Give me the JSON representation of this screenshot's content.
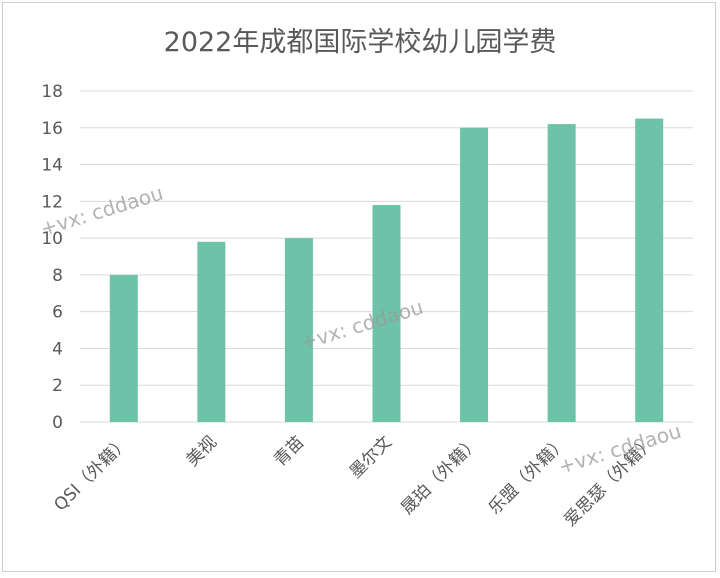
{
  "chart_data": {
    "type": "bar",
    "title": "2022年成都国际学校幼儿园学费",
    "xlabel": "",
    "ylabel": "",
    "categories": [
      "QSI（外籍）",
      "美视",
      "青苗",
      "墨尔文",
      "晟珀（外籍）",
      "乐盟（外籍）",
      "爱思瑟（外籍）"
    ],
    "values": [
      8.0,
      9.8,
      10.0,
      11.8,
      16.0,
      16.2,
      16.5
    ],
    "ylim": [
      0,
      18
    ],
    "yticks": [
      0,
      2,
      4,
      6,
      8,
      10,
      12,
      14,
      16,
      18
    ],
    "grid": true,
    "bar_color": "#6cc3a8",
    "legend": "none"
  },
  "watermarks": [
    "+vx: cddaou",
    "+vx: cddaou",
    "+vx: cddaou"
  ]
}
